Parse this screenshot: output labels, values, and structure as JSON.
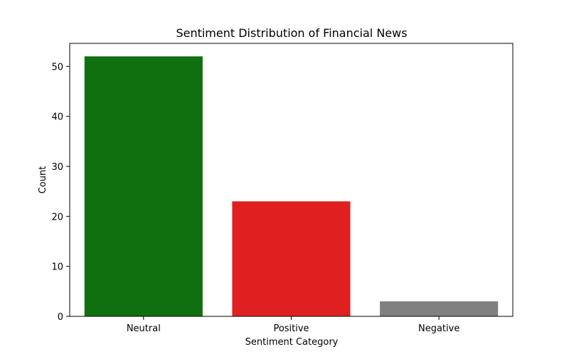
{
  "chart_data": {
    "type": "bar",
    "title": "Sentiment Distribution of Financial News",
    "xlabel": "Sentiment Category",
    "ylabel": "Count",
    "categories": [
      "Neutral",
      "Positive",
      "Negative"
    ],
    "values": [
      52,
      23,
      3
    ],
    "colors": [
      "#107010",
      "#e02020",
      "#808080"
    ],
    "ylim": [
      0,
      54.6
    ],
    "yticks": [
      0,
      10,
      20,
      30,
      40,
      50
    ],
    "grid": false,
    "legend": "none"
  }
}
